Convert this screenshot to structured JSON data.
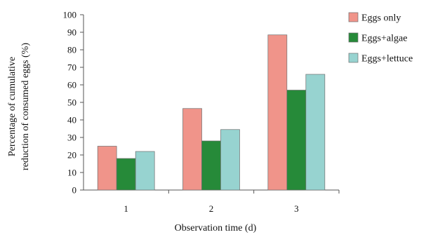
{
  "chart_data": {
    "type": "bar",
    "xlabel": "Observation time (d)",
    "ylabel_lines": [
      "Percentage of cumulative",
      "reduction of consumed eggs (%)"
    ],
    "categories": [
      "1",
      "2",
      "3"
    ],
    "ylim": [
      0,
      100
    ],
    "yticks": [
      0,
      10,
      20,
      30,
      40,
      50,
      60,
      70,
      80,
      90,
      100
    ],
    "grid": false,
    "legend_position": "top-right",
    "series": [
      {
        "name": "Eggs only",
        "color": "#f0948a",
        "values": [
          25,
          46.5,
          88.5
        ]
      },
      {
        "name": "Eggs+algae",
        "color": "#268a39",
        "values": [
          18,
          28,
          57
        ]
      },
      {
        "name": "Eggs+lettuce",
        "color": "#97d3d0",
        "values": [
          22,
          34.5,
          66
        ]
      }
    ]
  }
}
